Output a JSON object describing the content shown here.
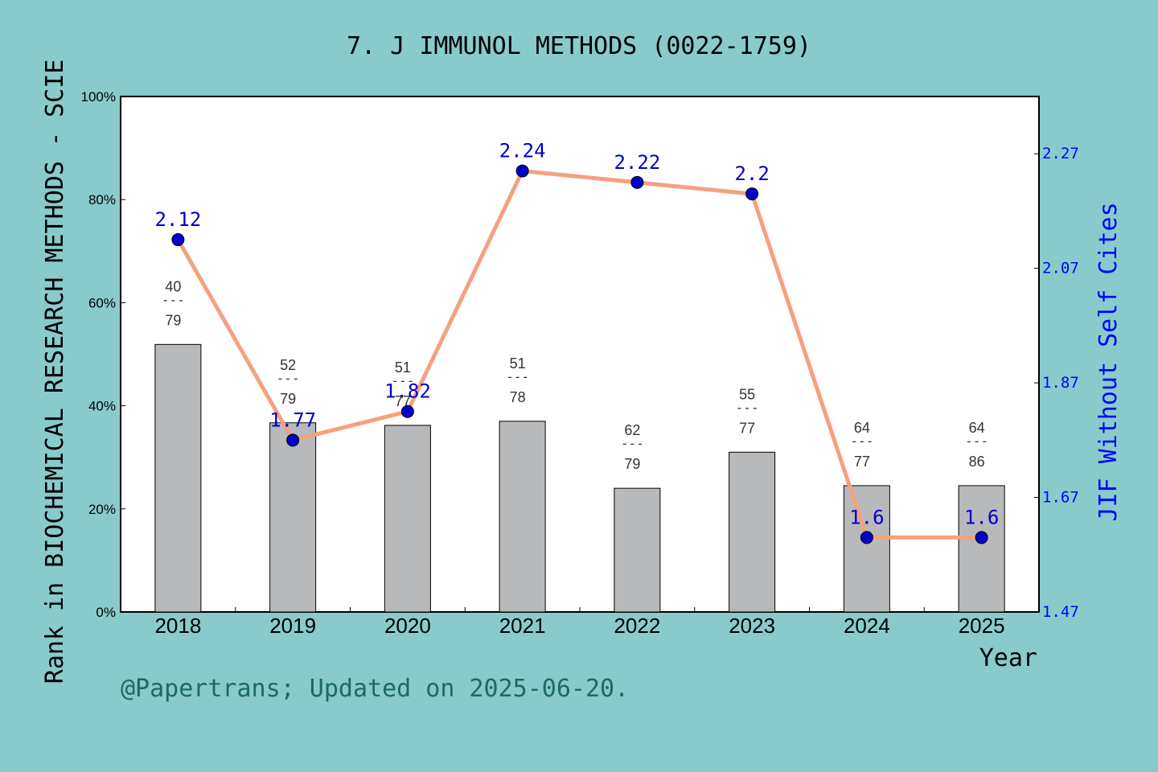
{
  "chart_data": {
    "type": "bar",
    "title": "7. J IMMUNOL METHODS (0022-1759)",
    "xlabel": "Year",
    "ylabel": "Rank in BIOCHEMICAL RESEARCH METHODS - SCIE",
    "y2label": "JIF Without Self Cites",
    "categories": [
      "2018",
      "2019",
      "2020",
      "2021",
      "2022",
      "2023",
      "2024",
      "2025"
    ],
    "ylim": [
      0,
      100
    ],
    "y_ticks": [
      "0%",
      "20%",
      "40%",
      "60%",
      "80%",
      "100%"
    ],
    "y2lim": [
      1.47,
      2.37
    ],
    "y2_ticks": [
      "1.47",
      "1.67",
      "1.87",
      "2.07",
      "2.27"
    ],
    "series": [
      {
        "kind": "bar",
        "values": [
          51.9,
          36.7,
          36.2,
          37.0,
          24.0,
          31.0,
          24.5,
          24.5
        ],
        "ranks": [
          "40",
          "52",
          "51",
          "51",
          "62",
          "55",
          "64",
          "64"
        ],
        "totals": [
          "79",
          "79",
          "77",
          "78",
          "79",
          "77",
          "77",
          "86"
        ],
        "separator": "---",
        "color": "#b8b9bb"
      },
      {
        "kind": "line",
        "axis": "right",
        "values": [
          2.12,
          1.77,
          1.82,
          2.24,
          2.22,
          2.2,
          1.6,
          1.6
        ],
        "labels": [
          "2.12",
          "1.77",
          "1.82",
          "2.24",
          "2.22",
          "2.2",
          "1.6",
          "1.6"
        ],
        "line_color": "#f4a17f",
        "marker_color": "#0000cc",
        "label_color": "#0000cc"
      }
    ],
    "grid": false,
    "legend": "none"
  },
  "footer": "@Papertrans; Updated on 2025-06-20.",
  "colors": {
    "background": "#89cbca",
    "plot_background": "#ffffff",
    "footer_text": "#1c6b5f",
    "right_axis": "#0000ff",
    "bar_label": "#333333"
  }
}
